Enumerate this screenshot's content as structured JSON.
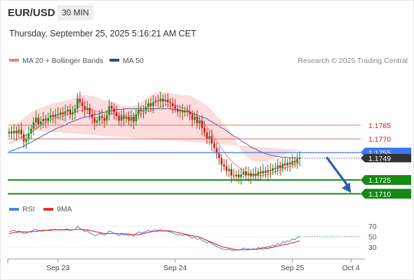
{
  "header": {
    "symbol": "EUR/USD",
    "timeframe": "30 MIN",
    "timestamp": "Thursday, September 25, 2025 5:16:21 AM CET"
  },
  "colors": {
    "bullish": "#1e8a1e",
    "bearish": "#c81e1e",
    "band_fill": "#fcd6d6",
    "ma20": "#f08080",
    "ma50": "#4a63a8",
    "resistance": "#e06060",
    "pivot": "#3c78f0",
    "support": "#138a13",
    "arrow": "#2e5ea8",
    "rsi": "#5b7fdc",
    "rsi_ma": "#e03030",
    "price_tag": "#333333"
  },
  "chart_data": [
    {
      "type": "candlestick",
      "legend": [
        {
          "label": "MA 20 + Bollinger Bands",
          "color": "#f08080"
        },
        {
          "label": "MA 50",
          "color": "#2a4a9a"
        }
      ],
      "watermark": "Research © 2025 Trading Central",
      "ylim": [
        1.1706,
        1.184
      ],
      "x_ticks": [
        {
          "label": "Sep 23",
          "index": 20
        },
        {
          "label": "Sep 24",
          "index": 68
        },
        {
          "label": "Sep 25",
          "index": 116
        },
        {
          "label": "Oct 4",
          "index": 140
        }
      ],
      "levels": [
        {
          "value": 1.1785,
          "label": "1.1785",
          "kind": "resistance"
        },
        {
          "value": 1.177,
          "label": "1.1770",
          "kind": "resistance"
        },
        {
          "value": 1.1755,
          "label": "1.1755",
          "kind": "pivot"
        },
        {
          "value": 1.1725,
          "label": "1.1725",
          "kind": "support"
        },
        {
          "value": 1.171,
          "label": "1.1710",
          "kind": "support"
        }
      ],
      "last_price": {
        "value": 1.1749,
        "label": "1.1749"
      },
      "arrow": {
        "from": [
          130,
          1.175
        ],
        "to": [
          140,
          1.1711
        ]
      },
      "close": [
        1.1778,
        1.1776,
        1.1779,
        1.1776,
        1.178,
        1.1775,
        1.1767,
        1.177,
        1.1776,
        1.1781,
        1.1788,
        1.1793,
        1.1786,
        1.1789,
        1.1792,
        1.179,
        1.1793,
        1.1796,
        1.1794,
        1.1797,
        1.1796,
        1.1799,
        1.1797,
        1.18,
        1.1802,
        1.1797,
        1.1799,
        1.1803,
        1.1814,
        1.181,
        1.1806,
        1.1802,
        1.1804,
        1.1797,
        1.1793,
        1.1788,
        1.179,
        1.1795,
        1.1793,
        1.179,
        1.1796,
        1.1806,
        1.1803,
        1.1799,
        1.1795,
        1.179,
        1.1795,
        1.1792,
        1.1794,
        1.179,
        1.1794,
        1.1789,
        1.1797,
        1.1802,
        1.18,
        1.1801,
        1.1805,
        1.1809,
        1.1806,
        1.181,
        1.1812,
        1.1811,
        1.1814,
        1.1811,
        1.1813,
        1.181,
        1.1809,
        1.1806,
        1.1803,
        1.18,
        1.1801,
        1.1799,
        1.1801,
        1.18,
        1.1797,
        1.1791,
        1.1794,
        1.1787,
        1.179,
        1.1782,
        1.1777,
        1.177,
        1.1773,
        1.1765,
        1.176,
        1.1754,
        1.1749,
        1.1742,
        1.174,
        1.1735,
        1.1737,
        1.173,
        1.1729,
        1.1731,
        1.1728,
        1.1731,
        1.1734,
        1.173,
        1.1732,
        1.1729,
        1.1732,
        1.173,
        1.1734,
        1.1732,
        1.1735,
        1.1733,
        1.1736,
        1.1735,
        1.1738,
        1.1737,
        1.1741,
        1.1738,
        1.1743,
        1.1741,
        1.1744,
        1.1742,
        1.1746,
        1.1744,
        1.1748,
        1.1749
      ],
      "ma20": [
        1.1765,
        1.1766,
        1.1768,
        1.1769,
        1.1771,
        1.1772,
        1.1773,
        1.1774,
        1.1775,
        1.1777,
        1.1779,
        1.1781,
        1.1783,
        1.1785,
        1.1787,
        1.1788,
        1.179,
        1.1791,
        1.1792,
        1.1793,
        1.1793,
        1.1794,
        1.1795,
        1.1796,
        1.1797,
        1.1797,
        1.1798,
        1.1799,
        1.18,
        1.1801,
        1.1801,
        1.1802,
        1.1802,
        1.1802,
        1.1802,
        1.1801,
        1.18,
        1.18,
        1.1799,
        1.1799,
        1.1798,
        1.1798,
        1.1798,
        1.1797,
        1.1797,
        1.1796,
        1.1796,
        1.1796,
        1.1795,
        1.1795,
        1.1795,
        1.1795,
        1.1795,
        1.1796,
        1.1797,
        1.1798,
        1.1799,
        1.18,
        1.1801,
        1.1802,
        1.1803,
        1.1804,
        1.1805,
        1.1806,
        1.1807,
        1.1807,
        1.1807,
        1.1807,
        1.1807,
        1.1806,
        1.1805,
        1.1804,
        1.1803,
        1.1802,
        1.18,
        1.1798,
        1.1796,
        1.1794,
        1.1792,
        1.1789,
        1.1786,
        1.1783,
        1.178,
        1.1776,
        1.1772,
        1.1768,
        1.1764,
        1.176,
        1.1756,
        1.1752,
        1.1749,
        1.1746,
        1.1743,
        1.1741,
        1.1739,
        1.1737,
        1.1735,
        1.1734,
        1.1733,
        1.1732,
        1.1731,
        1.173,
        1.173,
        1.173,
        1.173,
        1.1731,
        1.1731,
        1.1732,
        1.1733,
        1.1734,
        1.1735,
        1.1736,
        1.1737,
        1.1738,
        1.1739,
        1.174,
        1.1741,
        1.1742,
        1.1743,
        1.1744
      ],
      "bb_upper": [
        1.1781,
        1.1783,
        1.1785,
        1.1787,
        1.1789,
        1.1791,
        1.1793,
        1.1795,
        1.1797,
        1.1799,
        1.18,
        1.1802,
        1.1803,
        1.1804,
        1.1805,
        1.1806,
        1.1807,
        1.1808,
        1.1809,
        1.181,
        1.181,
        1.1811,
        1.1811,
        1.1812,
        1.1813,
        1.1813,
        1.1814,
        1.1815,
        1.1817,
        1.1818,
        1.1818,
        1.1818,
        1.1818,
        1.1817,
        1.1817,
        1.1816,
        1.1815,
        1.1814,
        1.1813,
        1.1812,
        1.1812,
        1.1812,
        1.1811,
        1.181,
        1.1809,
        1.1808,
        1.1807,
        1.1807,
        1.1806,
        1.1806,
        1.1806,
        1.1806,
        1.1807,
        1.1808,
        1.181,
        1.1812,
        1.1814,
        1.1816,
        1.1818,
        1.1819,
        1.182,
        1.1821,
        1.1821,
        1.1821,
        1.1821,
        1.182,
        1.182,
        1.182,
        1.1819,
        1.1819,
        1.1818,
        1.1818,
        1.1818,
        1.1818,
        1.1817,
        1.1816,
        1.1815,
        1.1813,
        1.1812,
        1.181,
        1.1808,
        1.1806,
        1.1804,
        1.1801,
        1.1798,
        1.1795,
        1.1792,
        1.1789,
        1.1786,
        1.1783,
        1.178,
        1.1777,
        1.1773,
        1.1768,
        1.1763,
        1.1758,
        1.1754,
        1.1751,
        1.1749,
        1.1747,
        1.1746,
        1.1745,
        1.1745,
        1.1745,
        1.1745,
        1.1746,
        1.1746,
        1.1747,
        1.1748,
        1.1749,
        1.175,
        1.1751,
        1.1752,
        1.1753,
        1.1754,
        1.1755,
        1.1756,
        1.1756,
        1.1757,
        1.1758
      ],
      "bb_lower": [
        1.1749,
        1.1749,
        1.175,
        1.1751,
        1.1753,
        1.1754,
        1.1755,
        1.1755,
        1.1756,
        1.1757,
        1.1758,
        1.176,
        1.1763,
        1.1766,
        1.1768,
        1.1771,
        1.1773,
        1.1775,
        1.1776,
        1.1777,
        1.1778,
        1.1778,
        1.1779,
        1.178,
        1.1781,
        1.1781,
        1.1782,
        1.1783,
        1.1784,
        1.1785,
        1.1785,
        1.1786,
        1.1786,
        1.1786,
        1.1786,
        1.1786,
        1.1786,
        1.1786,
        1.1785,
        1.1785,
        1.1785,
        1.1785,
        1.1785,
        1.1784,
        1.1784,
        1.1784,
        1.1784,
        1.1784,
        1.1784,
        1.1784,
        1.1784,
        1.1784,
        1.1784,
        1.1784,
        1.1784,
        1.1784,
        1.1784,
        1.1784,
        1.1784,
        1.1785,
        1.1786,
        1.1787,
        1.1788,
        1.179,
        1.1792,
        1.1793,
        1.1795,
        1.1795,
        1.1794,
        1.1794,
        1.1793,
        1.1791,
        1.1789,
        1.1786,
        1.1783,
        1.1779,
        1.1775,
        1.1771,
        1.1767,
        1.1763,
        1.1759,
        1.1754,
        1.175,
        1.1746,
        1.1742,
        1.1738,
        1.1734,
        1.1731,
        1.1728,
        1.1726,
        1.1724,
        1.1723,
        1.1722,
        1.1722,
        1.1722,
        1.1722,
        1.1723,
        1.1723,
        1.1723,
        1.1723,
        1.1723,
        1.1723,
        1.1723,
        1.1723,
        1.1723,
        1.1723,
        1.1724,
        1.1724,
        1.1724,
        1.1724,
        1.1725,
        1.1725,
        1.1726,
        1.1726,
        1.1727,
        1.1727,
        1.1728,
        1.1729
      ],
      "ma50": [
        1.1756,
        1.1757,
        1.1758,
        1.1759,
        1.176,
        1.1761,
        1.1762,
        1.1764,
        1.1765,
        1.1766,
        1.1768,
        1.1769,
        1.1771,
        1.1772,
        1.1774,
        1.1775,
        1.1777,
        1.1778,
        1.1779,
        1.1781,
        1.1782,
        1.1783,
        1.1784,
        1.1785,
        1.1787,
        1.1788,
        1.1789,
        1.179,
        1.1791,
        1.1792,
        1.1793,
        1.1794,
        1.1794,
        1.1795,
        1.1796,
        1.1797,
        1.1797,
        1.1798,
        1.1799,
        1.1799,
        1.18,
        1.18,
        1.1801,
        1.1801,
        1.1802,
        1.1802,
        1.1802,
        1.1803,
        1.1803,
        1.1803,
        1.1803,
        1.1803,
        1.1803,
        1.1803,
        1.1803,
        1.1803,
        1.1803,
        1.1803,
        1.1803,
        1.1803,
        1.1803,
        1.1803,
        1.1803,
        1.1803,
        1.1803,
        1.1803,
        1.1803,
        1.1802,
        1.1802,
        1.1802,
        1.1801,
        1.1801,
        1.18,
        1.18,
        1.1799,
        1.1798,
        1.1797,
        1.1796,
        1.1795,
        1.1794,
        1.1793,
        1.1792,
        1.179,
        1.1789,
        1.1787,
        1.1786,
        1.1784,
        1.1782,
        1.1781,
        1.1779,
        1.1777,
        1.1775,
        1.1773,
        1.1772,
        1.177,
        1.1768,
        1.1766,
        1.1765,
        1.1763,
        1.1761,
        1.176,
        1.1759,
        1.1757,
        1.1756,
        1.1755,
        1.1754,
        1.1753,
        1.1752,
        1.1752,
        1.1751,
        1.1751,
        1.175,
        1.175,
        1.175,
        1.175,
        1.1749,
        1.1749,
        1.1749,
        1.1749,
        1.1749
      ]
    },
    {
      "type": "line",
      "legend": [
        {
          "label": "RSI",
          "color": "#5b7fdc"
        },
        {
          "label": "9MA",
          "color": "#e03030"
        }
      ],
      "ylim": [
        10,
        85
      ],
      "y_ticks": [
        70,
        50,
        30
      ],
      "rsi": [
        60,
        61,
        62,
        60,
        61,
        59,
        56,
        57,
        59,
        60,
        63,
        64,
        61,
        62,
        63,
        62,
        63,
        64,
        63,
        64,
        63,
        64,
        63,
        64,
        65,
        62,
        63,
        64,
        70,
        66,
        63,
        60,
        61,
        58,
        55,
        52,
        53,
        56,
        55,
        53,
        56,
        61,
        59,
        57,
        55,
        52,
        55,
        53,
        54,
        52,
        54,
        51,
        56,
        59,
        58,
        58,
        60,
        62,
        60,
        62,
        63,
        62,
        64,
        61,
        62,
        60,
        59,
        57,
        55,
        53,
        54,
        52,
        54,
        53,
        50,
        47,
        49,
        45,
        47,
        43,
        41,
        38,
        40,
        36,
        34,
        31,
        29,
        27,
        26,
        25,
        26,
        24,
        23,
        25,
        24,
        26,
        28,
        26,
        27,
        25,
        27,
        26,
        29,
        28,
        30,
        29,
        32,
        31,
        34,
        33,
        37,
        35,
        40,
        39,
        42,
        41,
        46,
        44,
        49,
        50
      ],
      "ma9": [
        56,
        57,
        58,
        58,
        59,
        59,
        59,
        59,
        59,
        59,
        60,
        60,
        61,
        61,
        61,
        62,
        62,
        62,
        63,
        63,
        63,
        63,
        63,
        63,
        63,
        63,
        63,
        64,
        64,
        64,
        64,
        63,
        63,
        62,
        61,
        60,
        59,
        58,
        57,
        56,
        56,
        56,
        56,
        56,
        56,
        56,
        56,
        56,
        55,
        55,
        54,
        54,
        54,
        54,
        55,
        56,
        57,
        58,
        59,
        60,
        60,
        61,
        61,
        61,
        61,
        61,
        61,
        60,
        59,
        58,
        57,
        56,
        55,
        54,
        53,
        52,
        51,
        50,
        49,
        47,
        45,
        43,
        41,
        39,
        37,
        35,
        33,
        31,
        30,
        29,
        28,
        27,
        26,
        25,
        25,
        25,
        25,
        25,
        25,
        26,
        26,
        26,
        26,
        27,
        27,
        28,
        28,
        29,
        30,
        31,
        32,
        33,
        34,
        35,
        36,
        37,
        38,
        39,
        41,
        42
      ]
    }
  ]
}
